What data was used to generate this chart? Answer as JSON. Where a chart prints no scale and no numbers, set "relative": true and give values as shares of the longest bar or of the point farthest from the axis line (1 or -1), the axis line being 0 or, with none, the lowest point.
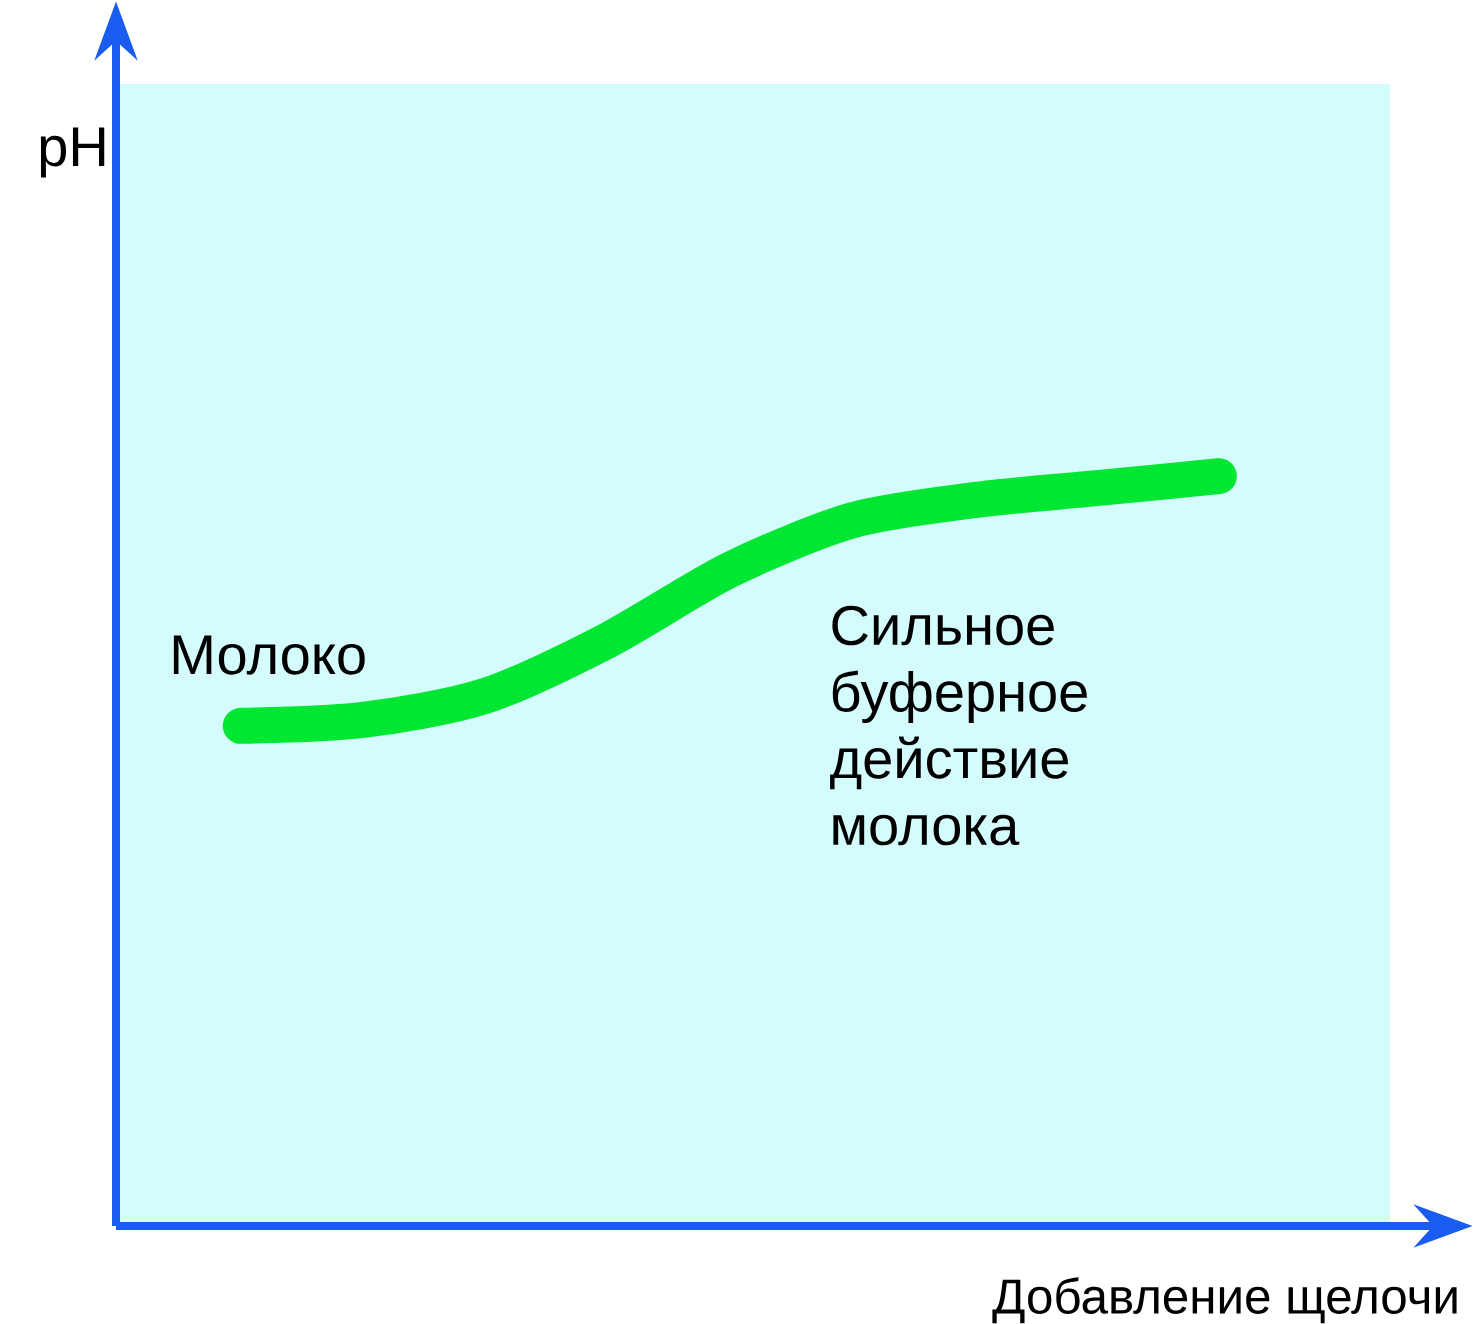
{
  "chart_data": {
    "type": "line",
    "relative": true,
    "xlabel": "Добавление щелочи",
    "categories": [
      null,
      null,
      null,
      null,
      null,
      null,
      null,
      null,
      null
    ],
    "series": [
      {
        "name": "Молоко",
        "color": "#00e632",
        "values": [
          0.667,
          0.675,
          0.707,
          0.781,
          0.875,
          0.941,
          0.968,
          0.984,
          1.0
        ]
      }
    ],
    "annotations": [
      "pH",
      "Сильное буферное действие молока"
    ]
  }
}
